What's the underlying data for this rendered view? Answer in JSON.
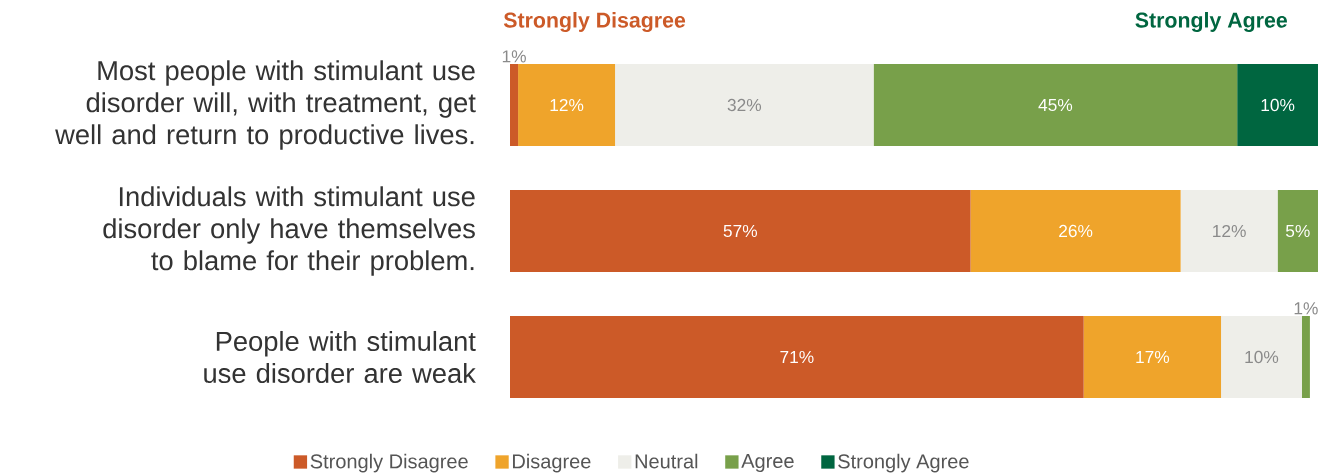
{
  "chart_data": {
    "type": "bar",
    "orientation": "horizontal",
    "stacked": true,
    "tick_labels": "y",
    "legend": "bottom",
    "categories": [
      "Most people with stimulant use disorder will, with treatment, get well and return to productive lives.",
      "Individuals with stimulant use disorder only have themselves to blame for their problem.",
      "People with stimulant use disorder are weak"
    ],
    "series": [
      {
        "name": "Strongly Disagree",
        "color": "#cc5a28",
        "values": [
          1,
          57,
          71
        ],
        "value_labels": [
          "1%",
          "57%",
          "71%"
        ]
      },
      {
        "name": "Disagree",
        "color": "#efa42b",
        "values": [
          12,
          26,
          17
        ],
        "value_labels": [
          "12%",
          "26%",
          "17%"
        ]
      },
      {
        "name": "Neutral",
        "color": "#eeeee9",
        "values": [
          32,
          12,
          10
        ],
        "value_labels": [
          "32%",
          "12%",
          "10%"
        ]
      },
      {
        "name": "Agree",
        "color": "#78a04a",
        "values": [
          45,
          5,
          1
        ],
        "value_labels": [
          "45%",
          "5%",
          "1%"
        ]
      },
      {
        "name": "Strongly Agree",
        "color": "#006640",
        "values": [
          10,
          null,
          null
        ],
        "value_labels": [
          "10%",
          null,
          null
        ]
      }
    ],
    "annotations": [
      "Strongly Disagree",
      "Strongly Agree"
    ]
  }
}
